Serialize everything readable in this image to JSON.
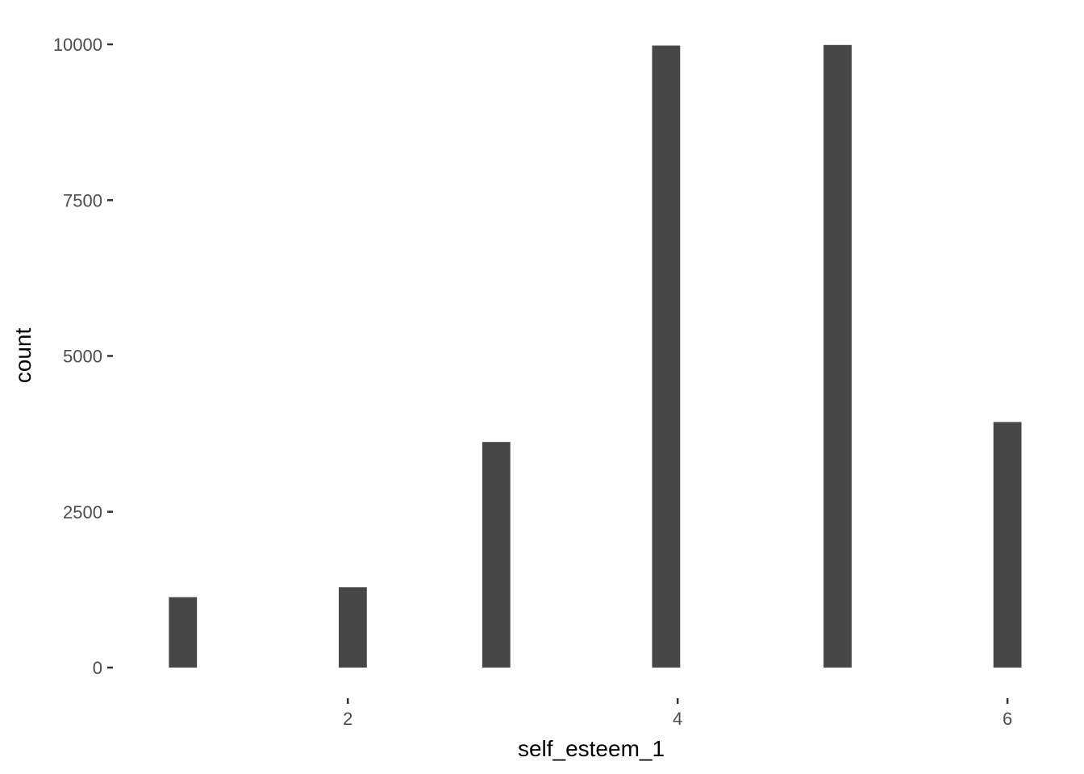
{
  "chart_data": {
    "type": "bar",
    "xlabel": "self_esteem_1",
    "ylabel": "count",
    "x_ticks": [
      2,
      4,
      6
    ],
    "y_ticks": [
      0,
      2500,
      5000,
      7500,
      10000
    ],
    "xlim": [
      0.6,
      6.2
    ],
    "ylim": [
      0,
      10000
    ],
    "bar_width": 0.17,
    "grid": false,
    "bars": [
      {
        "x": 1.0,
        "count": 1130
      },
      {
        "x": 2.03,
        "count": 1290
      },
      {
        "x": 2.9,
        "count": 3620
      },
      {
        "x": 3.93,
        "count": 9980
      },
      {
        "x": 4.97,
        "count": 9990
      },
      {
        "x": 6.0,
        "count": 3940
      }
    ],
    "bar_color": "#474747",
    "text_color": "#4d4d4d"
  }
}
